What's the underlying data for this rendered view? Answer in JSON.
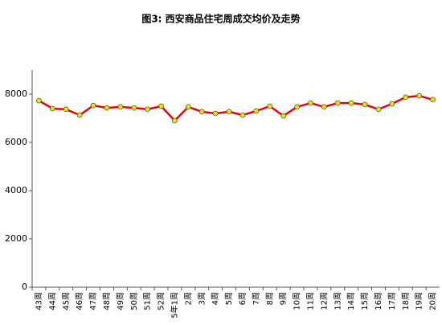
{
  "chart_data": {
    "type": "line",
    "title": "图3: 西安商品住宅周成交均价及走势",
    "categories": [
      "43周",
      "44周",
      "45周",
      "46周",
      "47周",
      "48周",
      "49周",
      "50周",
      "51周",
      "52周",
      "5年1周",
      "2周",
      "3周",
      "4周",
      "5周",
      "6周",
      "7周",
      "8周",
      "9周",
      "10周",
      "11周",
      "12周",
      "13周",
      "14周",
      "15周",
      "16周",
      "17周",
      "18周",
      "19周",
      "20周"
    ],
    "values": [
      7730,
      7400,
      7370,
      7130,
      7530,
      7430,
      7470,
      7430,
      7370,
      7500,
      6900,
      7470,
      7270,
      7200,
      7270,
      7130,
      7300,
      7500,
      7100,
      7470,
      7630,
      7470,
      7630,
      7630,
      7570,
      7370,
      7600,
      7870,
      7930,
      7770
    ],
    "color": "#e8000b",
    "marker_color": "#e6e600",
    "ylim": [
      0,
      9000
    ],
    "yticks": [
      0,
      2000,
      4000,
      6000,
      8000
    ],
    "grid": false
  }
}
